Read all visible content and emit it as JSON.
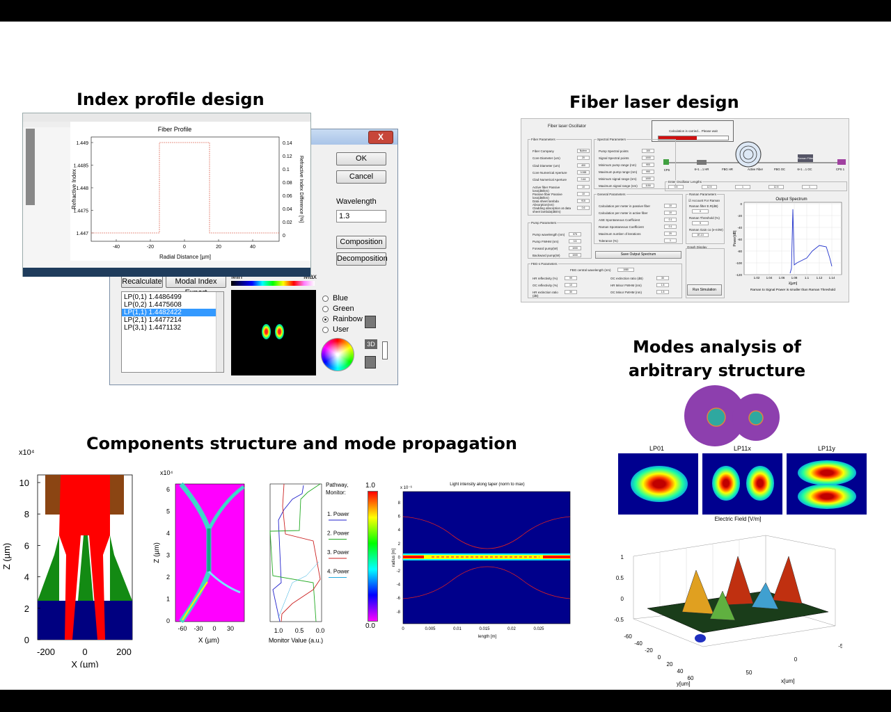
{
  "headings": {
    "index_profile": "Index profile design",
    "fiber_laser": "Fiber laser design",
    "modes_line1": "Modes analysis of",
    "modes_line2": "arbitrary structure",
    "components": "Components structure and mode propagation"
  },
  "colors": {
    "bar": "#000000",
    "button_face": "#e6e6e6",
    "selection": "#3399ff",
    "close_button": "#c7463a"
  },
  "fiber_profile": {
    "title": "Fiber Profile",
    "ylabel": "Refractive Index",
    "ylabel_right": "Refractive Index Difference [%]",
    "xlabel": "Radial Distance [µm]",
    "yticks": [
      "1.449",
      "1.4485",
      "1.448",
      "1.4475",
      "1.447"
    ],
    "yticks_right": [
      "0.14",
      "0.12",
      "0.1",
      "0.08",
      "0.06",
      "0.04",
      "0.02",
      "0"
    ],
    "xticks": [
      "-40",
      "-20",
      "0",
      "20",
      "40"
    ]
  },
  "mode_dialog": {
    "close": "X",
    "ok": "OK",
    "cancel": "Cancel",
    "wavelength_label": "Wavelength",
    "wavelength_value": "1.3",
    "composition": "Composition",
    "decomposition": "Decomposition",
    "recalculate": "Recalculate",
    "modal_export": "Modal Index Export",
    "min": "Min",
    "max": "Max",
    "modes": [
      "LP(0,1)  1.4486499",
      "LP(0,2)  1.4475608",
      "LP(1,1)  1.4482422",
      "LP(2,1)  1.4477214",
      "LP(3,1)  1.4471132"
    ],
    "selected_mode": "LP(1,1)  1.4482422",
    "color_options": [
      "Blue",
      "Green",
      "Rainbow",
      "User"
    ],
    "selected_color": "Rainbow",
    "view_3d": "3D"
  },
  "fiber_laser": {
    "window_title": "Fiber laser Oscillator",
    "progress_text": "Calculation is carried... Please wait",
    "fiber_params_title": "Fiber Parameters",
    "fiber_params": [
      {
        "label": "Fiber Company",
        "value": "Nufern"
      },
      {
        "label": "Core Diameter (um)",
        "value": "20"
      },
      {
        "label": "Clad Diameter (um)",
        "value": "400"
      },
      {
        "label": "Core Numerical Aperture",
        "value": "0.065"
      },
      {
        "label": "Clad Numerical Aperture",
        "value": "0.46"
      },
      {
        "label": "Active fiber Passive loss(dB/km)",
        "value": "10"
      },
      {
        "label": "Passive fiber Passive loss(dB/km)",
        "value": "10"
      },
      {
        "label": "Data sheet lambda Absorption(nm)",
        "value": "915"
      },
      {
        "label": "Cladding absorption at data sheet lambda(dB/m)",
        "value": "0.6"
      }
    ],
    "pump_params_title": "Pump Parameters",
    "pump_params": [
      {
        "label": "Pump wavelength (nm)",
        "value": "975"
      },
      {
        "label": "Pump FWHM (nm)",
        "value": "0.5"
      },
      {
        "label": "Forward pump(W)",
        "value": "1000"
      },
      {
        "label": "Backward pump(W)",
        "value": "1000"
      }
    ],
    "spectral_title": "Spectral Parameters",
    "spectral_params": [
      {
        "label": "Pump Spectral points",
        "value": "100"
      },
      {
        "label": "Signal Spectral points",
        "value": "1000"
      },
      {
        "label": "Minimum pump range (nm)",
        "value": "900"
      },
      {
        "label": "Maximum pump range (nm)",
        "value": "990"
      },
      {
        "label": "Minimum signal range (nm)",
        "value": "1000"
      },
      {
        "label": "Maximum signal range (nm)",
        "value": "1150"
      }
    ],
    "general_title": "General Parameters",
    "general_params": [
      {
        "label": "Calculation per meter in passive fiber",
        "value": "10"
      },
      {
        "label": "Calculation per meter in active fiber",
        "value": "10"
      },
      {
        "label": "ASE Spontaneous Coefficient",
        "value": "0.1"
      },
      {
        "label": "Raman Spontaneous Coefficient",
        "value": "0.1"
      },
      {
        "label": "Maximum number of iterations",
        "value": "20"
      },
      {
        "label": "Tolerance (%)",
        "value": "1"
      }
    ],
    "save_spectrum": "Save Output Spectrum",
    "fbg_title": "FBG-s Parameters",
    "fbg_central": "FBG central wavelength  (nm)",
    "fbg_central_value": "1080",
    "fbg_left": [
      {
        "label": "HR reflectivity (%)",
        "value": "99"
      },
      {
        "label": "OC reflectivity (%)",
        "value": "10"
      },
      {
        "label": "HR extinction ratio (dB)",
        "value": "30"
      }
    ],
    "fbg_right": [
      {
        "label": "OC extinction ratio (dB)",
        "value": "30"
      },
      {
        "label": "HR Minor FWHM (nm)",
        "value": "1.5"
      },
      {
        "label": "OC Minor FWHM (nm)",
        "value": "1.5"
      }
    ],
    "oscillator_lengths_label": "Enter Oscillator Lengths",
    "oscillator_lengths": [
      "0.5",
      "12.5",
      "1",
      "12.5",
      "1"
    ],
    "schematic_labels": [
      "CPS",
      "6+1→1 HR",
      "FBG HR",
      "Active Fiber",
      "FBG OC",
      "6+1→1 OC",
      "CPS 1"
    ],
    "raman_filter": "Raman Filter",
    "raman_title": "Raman Parameters",
    "raman_checkbox": "Account For Raman",
    "raman_fields": [
      {
        "label": "Raman filter E.R(dB)",
        "value": "0"
      },
      {
        "label": "Raman Threshold (%)",
        "value": "5"
      },
      {
        "label": "Raman Gain co (e-m/W)",
        "value": "1E-13"
      }
    ],
    "graph_display": "Graph Display",
    "run_simulation": "Run Simulation",
    "plot_title": "Output Spectrum",
    "plot_ylabel": "Power[dB]",
    "plot_xlabel": "λ[µm]",
    "plot_yticks": [
      "0",
      "-20",
      "-40",
      "-60",
      "-80",
      "-100",
      "-120"
    ],
    "plot_xticks": [
      "1.02",
      "1.04",
      "1.06",
      "1.08",
      "1.1",
      "1.12",
      "1.14"
    ],
    "status": "Raman to Signal Power is smaller than Raman Threshold"
  },
  "modes": {
    "panel_titles": [
      "LP01",
      "LP11x",
      "LP11y"
    ],
    "surface_title": "Electric Field [V/m]",
    "z_ticks": [
      "1",
      "0.5",
      "0",
      "-0.5"
    ],
    "y_ticks": [
      "-60",
      "-40",
      "-20",
      "0",
      "20",
      "40",
      "60"
    ],
    "x_ticks": [
      "50",
      "0",
      "-50"
    ],
    "y_label": "y[um]",
    "x_label": "x[um]"
  },
  "components": {
    "chart1": {
      "exp": "x10⁴",
      "yticks": [
        "10",
        "8",
        "6",
        "4",
        "2",
        "0"
      ],
      "xticks": [
        "-200",
        "0",
        "200"
      ],
      "xlabel": "X (µm)",
      "ylabel": "Z (µm)"
    },
    "chart2": {
      "exp": "x10⁴",
      "yticks": [
        "6",
        "5",
        "4",
        "3",
        "2",
        "1",
        "0"
      ],
      "xticks": [
        "-60",
        "-30",
        "0",
        "30"
      ],
      "xlabel": "X (µm)",
      "ylabel": "Z (µm)"
    },
    "monitor": {
      "xticks": [
        "1.0",
        "0.5",
        "0.0"
      ],
      "xlabel": "Monitor Value (a.u.)",
      "legend_title": [
        "Pathway,",
        "Monitor:"
      ],
      "legend": [
        "1. Power",
        "2. Power",
        "3. Power",
        "4. Power"
      ],
      "legend_colors": [
        "#2222cc",
        "#22aa22",
        "#cc2222",
        "#22aadd"
      ]
    },
    "colorbar": {
      "max": "1.0",
      "min": "0.0"
    },
    "taper": {
      "title": "Light intensity along taper (norm to max)",
      "exp": "x 10⁻⁶",
      "ylabel": "radius [m]",
      "xlabel": "length [m]",
      "yticks": [
        "8",
        "6",
        "4",
        "2",
        "0",
        "-2",
        "-4",
        "-6",
        "-8"
      ],
      "xticks": [
        "0",
        "0.005",
        "0.01",
        "0.015",
        "0.02",
        "0.025"
      ]
    }
  }
}
